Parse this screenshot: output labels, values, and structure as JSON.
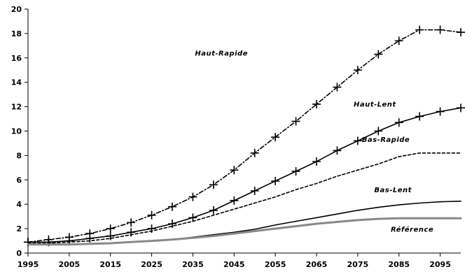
{
  "chart_data": {
    "type": "line",
    "title": "",
    "xlabel": "",
    "ylabel": "",
    "xlim": [
      1995,
      2100
    ],
    "ylim": [
      0,
      20
    ],
    "x_ticks": [
      1995,
      2005,
      2015,
      2025,
      2035,
      2045,
      2055,
      2065,
      2075,
      2085,
      2095
    ],
    "y_ticks": [
      0,
      2,
      4,
      6,
      8,
      10,
      12,
      14,
      16,
      18,
      20
    ],
    "grid": false,
    "legend": "none",
    "x": [
      1995,
      2000,
      2005,
      2010,
      2015,
      2020,
      2025,
      2030,
      2035,
      2040,
      2045,
      2050,
      2055,
      2060,
      2065,
      2070,
      2075,
      2080,
      2085,
      2090,
      2095,
      2100
    ],
    "series": [
      {
        "name": "Haut-Rapide",
        "style": "dash-dot",
        "markers": "plus",
        "color": "#000000",
        "values": [
          0.9,
          1.1,
          1.3,
          1.6,
          2.0,
          2.5,
          3.1,
          3.8,
          4.6,
          5.6,
          6.8,
          8.2,
          9.5,
          10.8,
          12.2,
          13.6,
          15.0,
          16.3,
          17.4,
          18.3,
          18.3,
          18.1
        ]
      },
      {
        "name": "Haut-Lent",
        "style": "solid",
        "markers": "plus",
        "color": "#000000",
        "values": [
          0.9,
          0.9,
          1.0,
          1.2,
          1.4,
          1.7,
          2.0,
          2.4,
          2.9,
          3.5,
          4.3,
          5.1,
          5.9,
          6.7,
          7.5,
          8.4,
          9.2,
          10.0,
          10.7,
          11.2,
          11.6,
          11.9
        ]
      },
      {
        "name": "Bas-Rapide",
        "style": "dashed",
        "markers": "none",
        "color": "#000000",
        "values": [
          0.8,
          0.8,
          0.9,
          1.0,
          1.2,
          1.5,
          1.8,
          2.2,
          2.6,
          3.1,
          3.6,
          4.1,
          4.6,
          5.2,
          5.7,
          6.3,
          6.8,
          7.3,
          7.9,
          8.2,
          8.2,
          8.2
        ]
      },
      {
        "name": "Bas-Lent",
        "style": "solid",
        "markers": "none",
        "color": "#000000",
        "values": [
          0.7,
          0.7,
          0.7,
          0.75,
          0.8,
          0.9,
          1.0,
          1.1,
          1.3,
          1.5,
          1.7,
          1.95,
          2.3,
          2.6,
          2.9,
          3.2,
          3.5,
          3.75,
          3.95,
          4.1,
          4.2,
          4.25
        ]
      },
      {
        "name": "Référence",
        "style": "solid",
        "markers": "none",
        "color": "#888888",
        "values": [
          0.7,
          0.7,
          0.7,
          0.75,
          0.8,
          0.9,
          1.0,
          1.1,
          1.25,
          1.4,
          1.6,
          1.8,
          2.0,
          2.2,
          2.4,
          2.55,
          2.7,
          2.8,
          2.85,
          2.85,
          2.85,
          2.85
        ]
      }
    ],
    "annotations": [
      {
        "text": "Haut-Rapide",
        "x": 2035.5,
        "y": 16.2
      },
      {
        "text": "Haut-Lent",
        "x": 2074,
        "y": 12.0
      },
      {
        "text": "Bas-Rapide",
        "x": 2076,
        "y": 9.1
      },
      {
        "text": "Bas-Lent",
        "x": 2079,
        "y": 5.0
      },
      {
        "text": "Référence",
        "x": 2083,
        "y": 1.75
      }
    ]
  }
}
